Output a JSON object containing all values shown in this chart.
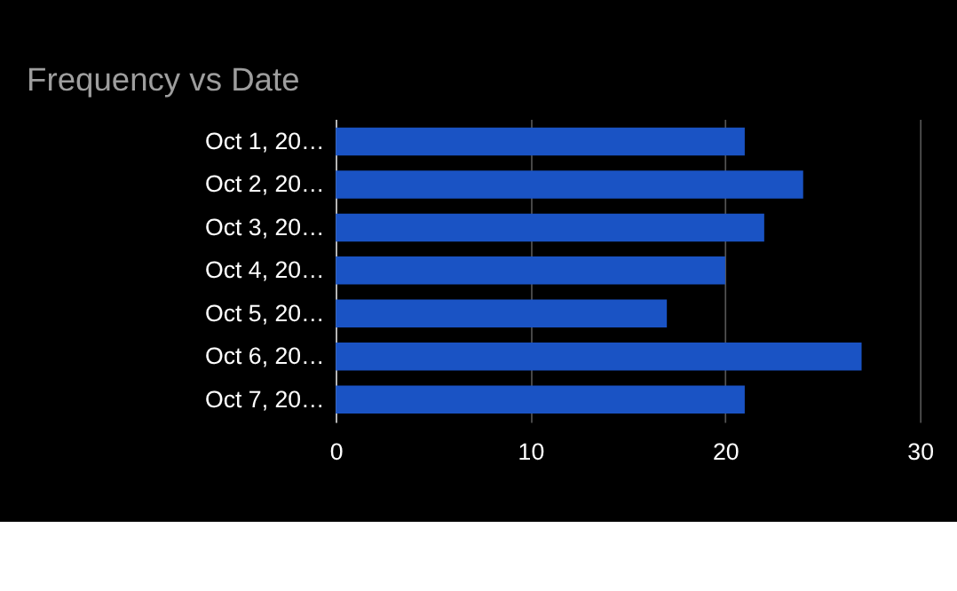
{
  "chart_data": {
    "type": "bar",
    "orientation": "horizontal",
    "title": "Frequency  vs Date",
    "categories": [
      "Oct 1, 20…",
      "Oct 2, 20…",
      "Oct 3, 20…",
      "Oct 4, 20…",
      "Oct 5, 20…",
      "Oct 6, 20…",
      "Oct 7, 20…"
    ],
    "values": [
      21,
      24,
      22,
      20,
      17,
      27,
      21
    ],
    "color": "#1a53c4",
    "xlim": [
      0,
      30
    ],
    "xticks": [
      0,
      10,
      20,
      30
    ],
    "grid": "x"
  }
}
